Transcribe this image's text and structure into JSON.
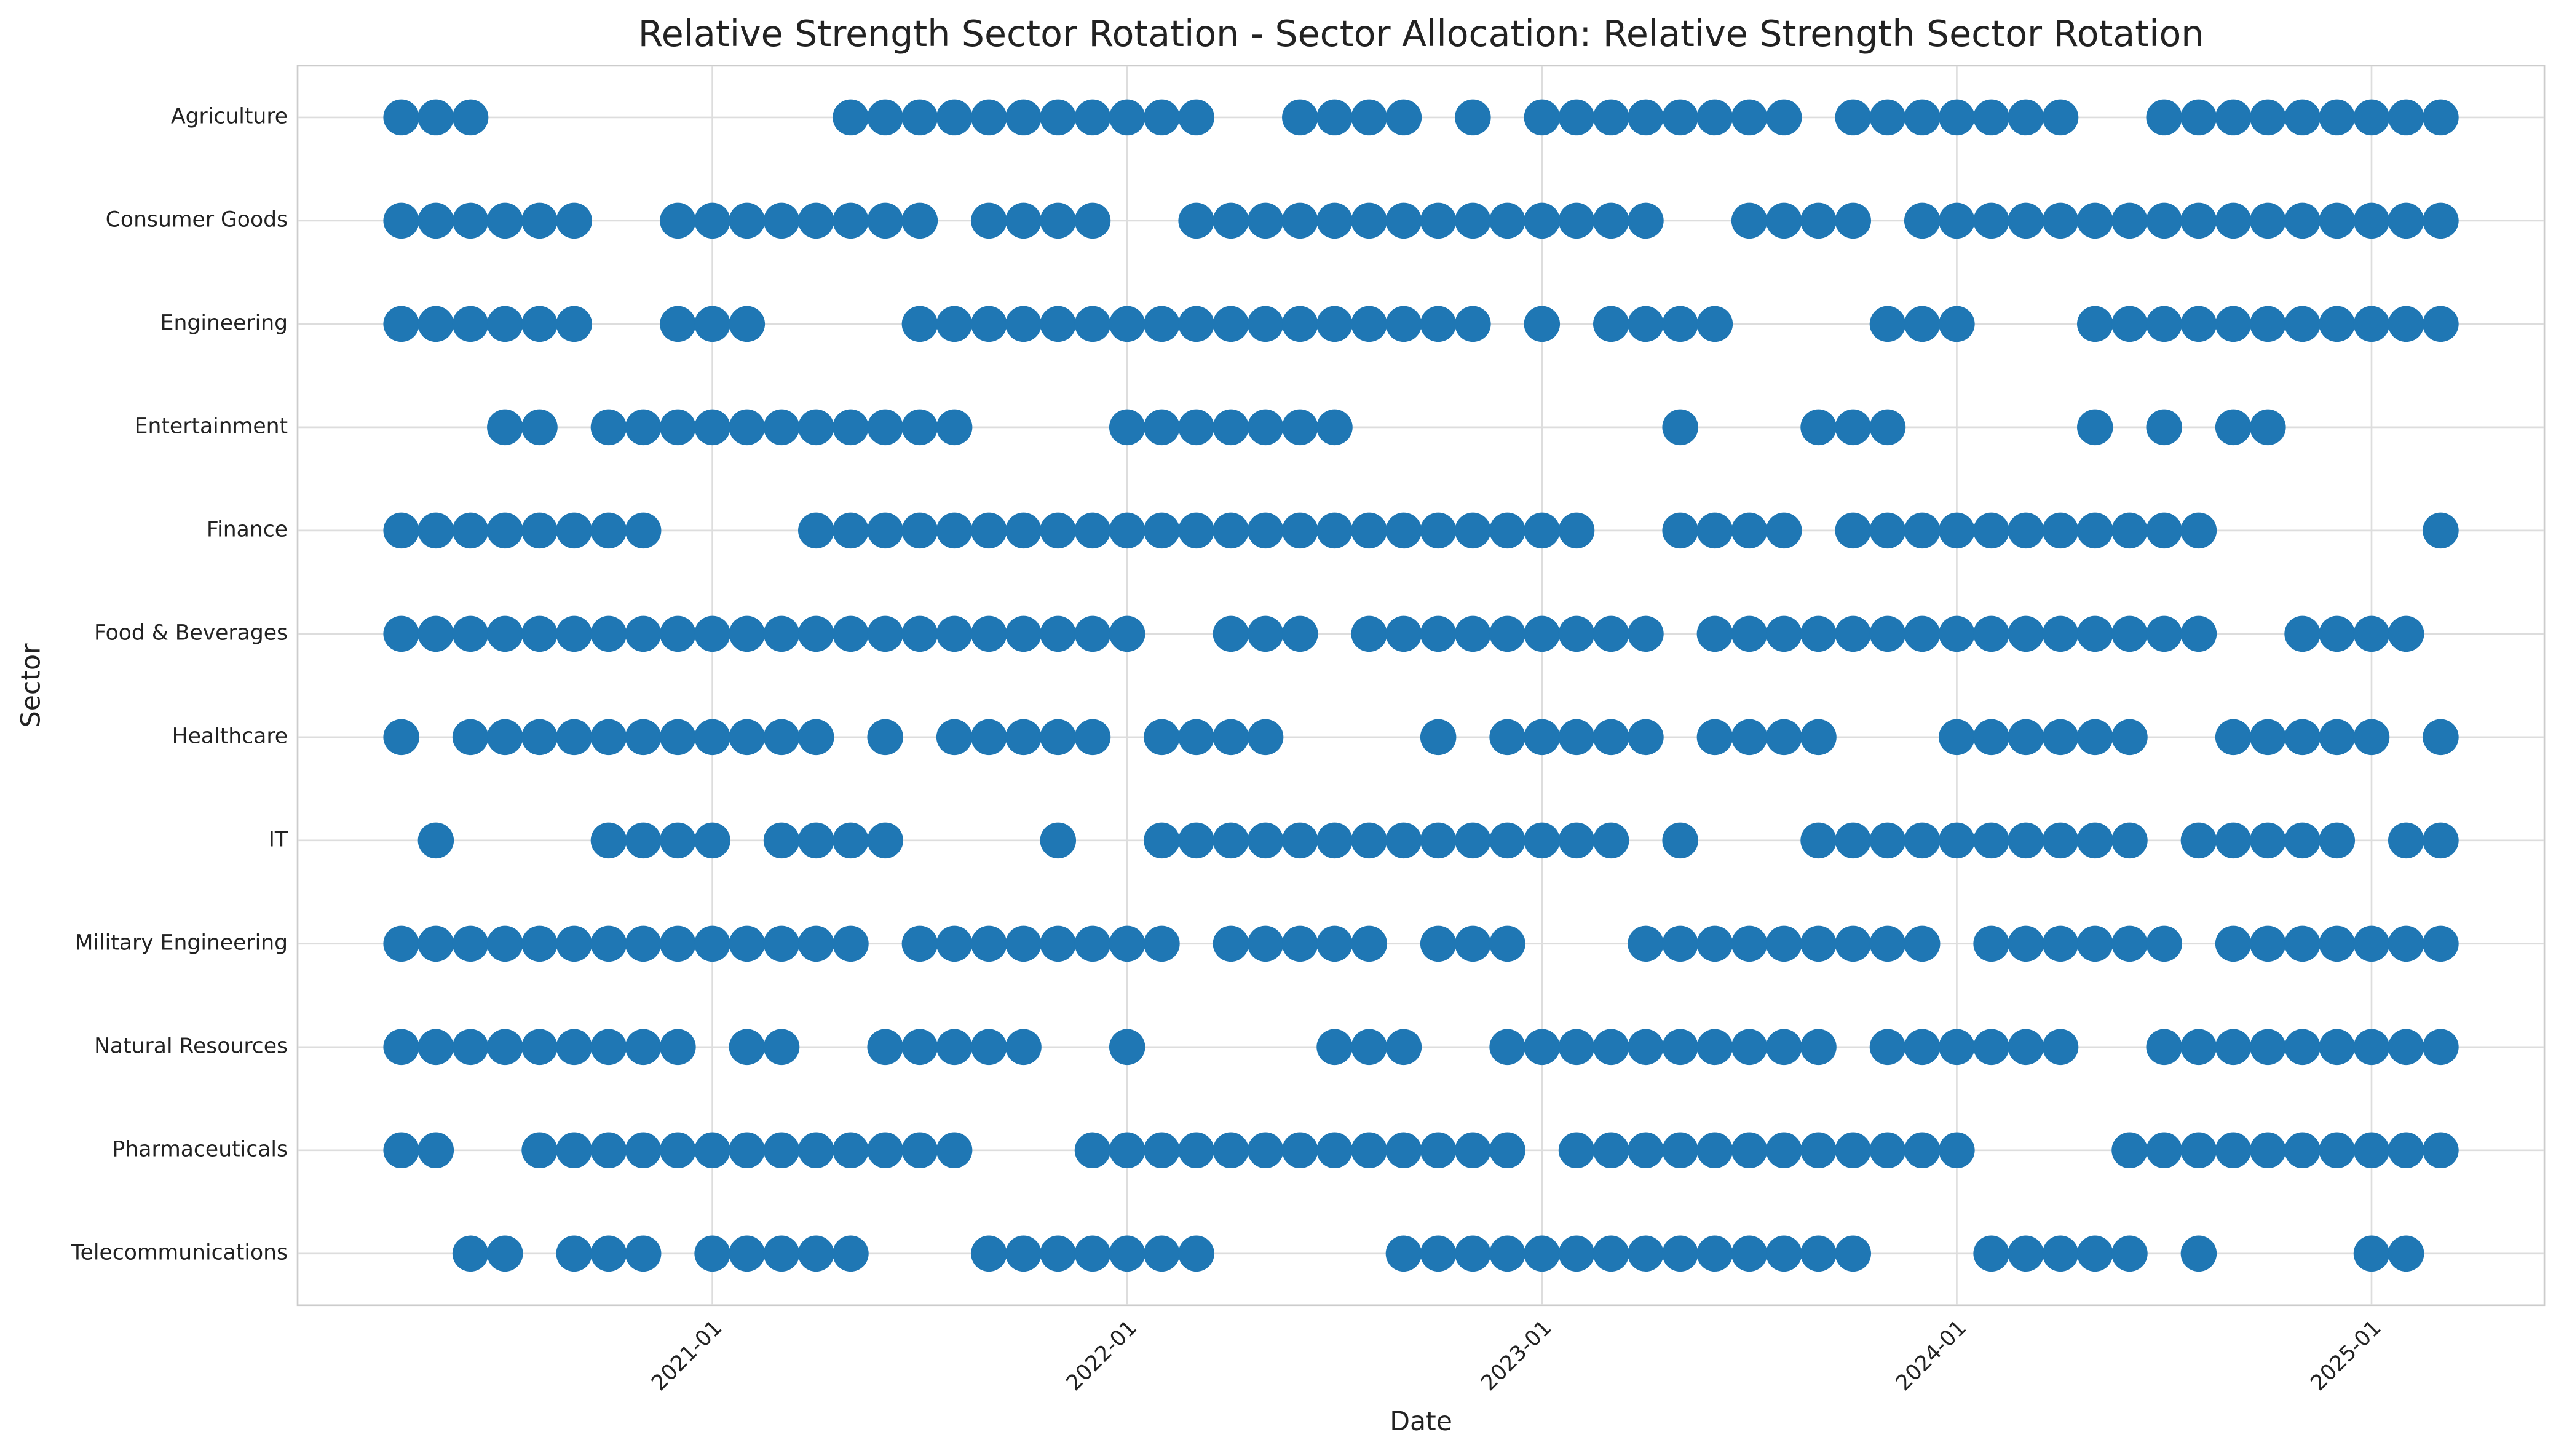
{
  "chart_data": {
    "type": "scatter",
    "title": "Relative Strength Sector Rotation - Sector Allocation: Relative Strength Sector Rotation",
    "xlabel": "Date",
    "ylabel": "Sector",
    "color": "#1f77b4",
    "grid": true,
    "xlim": [
      "2020-01",
      "2025-06"
    ],
    "xticks": [
      "2021-01",
      "2022-01",
      "2023-01",
      "2024-01",
      "2025-01"
    ],
    "categories": [
      "Agriculture",
      "Consumer Goods",
      "Engineering",
      "Entertainment",
      "Finance",
      "Food & Beverages",
      "Healthcare",
      "IT",
      "Military Engineering",
      "Natural Resources",
      "Pharmaceuticals",
      "Telecommunications"
    ],
    "dates": [
      [
        "2020-04",
        "2020-05",
        "2020-06",
        "2021-05",
        "2021-06",
        "2021-07",
        "2021-08",
        "2021-09",
        "2021-10",
        "2021-11",
        "2021-12",
        "2022-01",
        "2022-02",
        "2022-03",
        "2022-06",
        "2022-07",
        "2022-08",
        "2022-09",
        "2022-11",
        "2023-01",
        "2023-02",
        "2023-03",
        "2023-04",
        "2023-05",
        "2023-06",
        "2023-07",
        "2023-08",
        "2023-10",
        "2023-11",
        "2023-12",
        "2024-01",
        "2024-02",
        "2024-03",
        "2024-04",
        "2024-07",
        "2024-08",
        "2024-09",
        "2024-10",
        "2024-11",
        "2024-12",
        "2025-01",
        "2025-02",
        "2025-03"
      ],
      [
        "2020-04",
        "2020-05",
        "2020-06",
        "2020-07",
        "2020-08",
        "2020-09",
        "2020-12",
        "2021-01",
        "2021-02",
        "2021-03",
        "2021-04",
        "2021-05",
        "2021-06",
        "2021-07",
        "2021-09",
        "2021-10",
        "2021-11",
        "2021-12",
        "2022-03",
        "2022-04",
        "2022-05",
        "2022-06",
        "2022-07",
        "2022-08",
        "2022-09",
        "2022-10",
        "2022-11",
        "2022-12",
        "2023-01",
        "2023-02",
        "2023-03",
        "2023-04",
        "2023-07",
        "2023-08",
        "2023-09",
        "2023-10",
        "2023-12",
        "2024-01",
        "2024-02",
        "2024-03",
        "2024-04",
        "2024-05",
        "2024-06",
        "2024-07",
        "2024-08",
        "2024-09",
        "2024-10",
        "2024-11",
        "2024-12",
        "2025-01",
        "2025-02",
        "2025-03"
      ],
      [
        "2020-04",
        "2020-05",
        "2020-06",
        "2020-07",
        "2020-08",
        "2020-09",
        "2020-12",
        "2021-01",
        "2021-02",
        "2021-07",
        "2021-08",
        "2021-09",
        "2021-10",
        "2021-11",
        "2021-12",
        "2022-01",
        "2022-02",
        "2022-03",
        "2022-04",
        "2022-05",
        "2022-06",
        "2022-07",
        "2022-08",
        "2022-09",
        "2022-10",
        "2022-11",
        "2023-01",
        "2023-03",
        "2023-04",
        "2023-05",
        "2023-06",
        "2023-11",
        "2023-12",
        "2024-01",
        "2024-05",
        "2024-06",
        "2024-07",
        "2024-08",
        "2024-09",
        "2024-10",
        "2024-11",
        "2024-12",
        "2025-01",
        "2025-02",
        "2025-03"
      ],
      [
        "2020-07",
        "2020-08",
        "2020-10",
        "2020-11",
        "2020-12",
        "2021-01",
        "2021-02",
        "2021-03",
        "2021-04",
        "2021-05",
        "2021-06",
        "2021-07",
        "2021-08",
        "2022-01",
        "2022-02",
        "2022-03",
        "2022-04",
        "2022-05",
        "2022-06",
        "2022-07",
        "2023-05",
        "2023-09",
        "2023-10",
        "2023-11",
        "2024-05",
        "2024-07",
        "2024-09",
        "2024-10"
      ],
      [
        "2020-04",
        "2020-05",
        "2020-06",
        "2020-07",
        "2020-08",
        "2020-09",
        "2020-10",
        "2020-11",
        "2021-04",
        "2021-05",
        "2021-06",
        "2021-07",
        "2021-08",
        "2021-09",
        "2021-10",
        "2021-11",
        "2021-12",
        "2022-01",
        "2022-02",
        "2022-03",
        "2022-04",
        "2022-05",
        "2022-06",
        "2022-07",
        "2022-08",
        "2022-09",
        "2022-10",
        "2022-11",
        "2022-12",
        "2023-01",
        "2023-02",
        "2023-05",
        "2023-06",
        "2023-07",
        "2023-08",
        "2023-10",
        "2023-11",
        "2023-12",
        "2024-01",
        "2024-02",
        "2024-03",
        "2024-04",
        "2024-05",
        "2024-06",
        "2024-07",
        "2024-08",
        "2025-03"
      ],
      [
        "2020-04",
        "2020-05",
        "2020-06",
        "2020-07",
        "2020-08",
        "2020-09",
        "2020-10",
        "2020-11",
        "2020-12",
        "2021-01",
        "2021-02",
        "2021-03",
        "2021-04",
        "2021-05",
        "2021-06",
        "2021-07",
        "2021-08",
        "2021-09",
        "2021-10",
        "2021-11",
        "2021-12",
        "2022-01",
        "2022-04",
        "2022-05",
        "2022-06",
        "2022-08",
        "2022-09",
        "2022-10",
        "2022-11",
        "2022-12",
        "2023-01",
        "2023-02",
        "2023-03",
        "2023-04",
        "2023-06",
        "2023-07",
        "2023-08",
        "2023-09",
        "2023-10",
        "2023-11",
        "2023-12",
        "2024-01",
        "2024-02",
        "2024-03",
        "2024-04",
        "2024-05",
        "2024-06",
        "2024-07",
        "2024-08",
        "2024-11",
        "2024-12",
        "2025-01",
        "2025-02"
      ],
      [
        "2020-04",
        "2020-06",
        "2020-07",
        "2020-08",
        "2020-09",
        "2020-10",
        "2020-11",
        "2020-12",
        "2021-01",
        "2021-02",
        "2021-03",
        "2021-04",
        "2021-06",
        "2021-08",
        "2021-09",
        "2021-10",
        "2021-11",
        "2021-12",
        "2022-02",
        "2022-03",
        "2022-04",
        "2022-05",
        "2022-10",
        "2022-12",
        "2023-01",
        "2023-02",
        "2023-03",
        "2023-04",
        "2023-06",
        "2023-07",
        "2023-08",
        "2023-09",
        "2024-01",
        "2024-02",
        "2024-03",
        "2024-04",
        "2024-05",
        "2024-06",
        "2024-09",
        "2024-10",
        "2024-11",
        "2024-12",
        "2025-01",
        "2025-03"
      ],
      [
        "2020-05",
        "2020-10",
        "2020-11",
        "2020-12",
        "2021-01",
        "2021-03",
        "2021-04",
        "2021-05",
        "2021-06",
        "2021-11",
        "2022-02",
        "2022-03",
        "2022-04",
        "2022-05",
        "2022-06",
        "2022-07",
        "2022-08",
        "2022-09",
        "2022-10",
        "2022-11",
        "2022-12",
        "2023-01",
        "2023-02",
        "2023-03",
        "2023-05",
        "2023-09",
        "2023-10",
        "2023-11",
        "2023-12",
        "2024-01",
        "2024-02",
        "2024-03",
        "2024-04",
        "2024-05",
        "2024-06",
        "2024-08",
        "2024-09",
        "2024-10",
        "2024-11",
        "2024-12",
        "2025-02",
        "2025-03"
      ],
      [
        "2020-04",
        "2020-05",
        "2020-06",
        "2020-07",
        "2020-08",
        "2020-09",
        "2020-10",
        "2020-11",
        "2020-12",
        "2021-01",
        "2021-02",
        "2021-03",
        "2021-04",
        "2021-05",
        "2021-07",
        "2021-08",
        "2021-09",
        "2021-10",
        "2021-11",
        "2021-12",
        "2022-01",
        "2022-02",
        "2022-04",
        "2022-05",
        "2022-06",
        "2022-07",
        "2022-08",
        "2022-10",
        "2022-11",
        "2022-12",
        "2023-04",
        "2023-05",
        "2023-06",
        "2023-07",
        "2023-08",
        "2023-09",
        "2023-10",
        "2023-11",
        "2023-12",
        "2024-02",
        "2024-03",
        "2024-04",
        "2024-05",
        "2024-06",
        "2024-07",
        "2024-09",
        "2024-10",
        "2024-11",
        "2024-12",
        "2025-01",
        "2025-02",
        "2025-03"
      ],
      [
        "2020-04",
        "2020-05",
        "2020-06",
        "2020-07",
        "2020-08",
        "2020-09",
        "2020-10",
        "2020-11",
        "2020-12",
        "2021-02",
        "2021-03",
        "2021-06",
        "2021-07",
        "2021-08",
        "2021-09",
        "2021-10",
        "2022-01",
        "2022-07",
        "2022-08",
        "2022-09",
        "2022-12",
        "2023-01",
        "2023-02",
        "2023-03",
        "2023-04",
        "2023-05",
        "2023-06",
        "2023-07",
        "2023-08",
        "2023-09",
        "2023-11",
        "2023-12",
        "2024-01",
        "2024-02",
        "2024-03",
        "2024-04",
        "2024-07",
        "2024-08",
        "2024-09",
        "2024-10",
        "2024-11",
        "2024-12",
        "2025-01",
        "2025-02",
        "2025-03"
      ],
      [
        "2020-04",
        "2020-05",
        "2020-08",
        "2020-09",
        "2020-10",
        "2020-11",
        "2020-12",
        "2021-01",
        "2021-02",
        "2021-03",
        "2021-04",
        "2021-05",
        "2021-06",
        "2021-07",
        "2021-08",
        "2021-12",
        "2022-01",
        "2022-02",
        "2022-03",
        "2022-04",
        "2022-05",
        "2022-06",
        "2022-07",
        "2022-08",
        "2022-09",
        "2022-10",
        "2022-11",
        "2022-12",
        "2023-02",
        "2023-03",
        "2023-04",
        "2023-05",
        "2023-06",
        "2023-07",
        "2023-08",
        "2023-09",
        "2023-10",
        "2023-11",
        "2023-12",
        "2024-01",
        "2024-06",
        "2024-07",
        "2024-08",
        "2024-09",
        "2024-10",
        "2024-11",
        "2024-12",
        "2025-01",
        "2025-02",
        "2025-03"
      ],
      [
        "2020-06",
        "2020-07",
        "2020-09",
        "2020-10",
        "2020-11",
        "2021-01",
        "2021-02",
        "2021-03",
        "2021-04",
        "2021-05",
        "2021-09",
        "2021-10",
        "2021-11",
        "2021-12",
        "2022-01",
        "2022-02",
        "2022-03",
        "2022-09",
        "2022-10",
        "2022-11",
        "2022-12",
        "2023-01",
        "2023-02",
        "2023-03",
        "2023-04",
        "2023-05",
        "2023-06",
        "2023-07",
        "2023-08",
        "2023-09",
        "2023-10",
        "2024-02",
        "2024-03",
        "2024-04",
        "2024-05",
        "2024-06",
        "2024-08",
        "2025-01",
        "2025-02"
      ]
    ]
  }
}
